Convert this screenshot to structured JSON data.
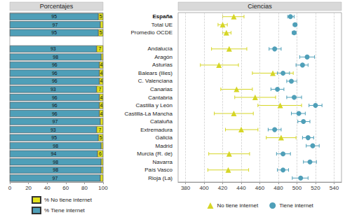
{
  "chart_data": [
    {
      "type": "bar",
      "title": "Porcentajes",
      "orientation": "horizontal",
      "stacked": true,
      "data_labels": true,
      "tick_labels": "x",
      "grid": false,
      "legend": "bottom-left",
      "categories": [
        "España",
        "Total UE",
        "Promedio OCDE",
        null,
        "Andalucía",
        "Aragón",
        "Asturias",
        "Balears (Illes)",
        "C. Valenciana",
        "Canarias",
        "Cantabria",
        "Castilla y León",
        "Castilla-La Mancha",
        "Cataluña",
        "Extremadura",
        "Galicia",
        "Madrid",
        "Murcia (R. de)",
        "Navarra",
        "País Vasco",
        "Rioja (La)"
      ],
      "xlim": [
        0,
        100
      ],
      "xticks": [
        0,
        20,
        40,
        60,
        80,
        100
      ],
      "series": [
        {
          "name": "% No tiene internet",
          "color": "#e3e31e",
          "values": [
            5,
            3,
            5,
            null,
            7,
            2,
            4,
            4,
            4,
            7,
            4,
            4,
            4,
            3,
            7,
            5,
            2,
            6,
            2,
            2,
            3
          ],
          "value_labels": [
            "5",
            null,
            "5",
            null,
            "7",
            null,
            "4",
            "4",
            "4",
            "7",
            "4",
            "4",
            "4",
            null,
            "7",
            "5",
            null,
            "6",
            null,
            null,
            null
          ]
        },
        {
          "name": "% Tiene internet",
          "color": "#4f9fb8",
          "values": [
            95,
            97,
            95,
            null,
            93,
            98,
            96,
            96,
            96,
            93,
            96,
            96,
            96,
            97,
            93,
            95,
            98,
            94,
            98,
            98,
            97
          ]
        }
      ]
    },
    {
      "type": "scatter",
      "title": "Ciencias",
      "grid": true,
      "legend": "bottom",
      "categories": [
        "España",
        "Total UE",
        "Promedio OCDE",
        null,
        "Andalucía",
        "Aragón",
        "Asturias",
        "Balears (Illes)",
        "C. Valenciana",
        "Canarias",
        "Cantabria",
        "Castilla y León",
        "Castilla-La Mancha",
        "Cataluña",
        "Extremadura",
        "Galicia",
        "Madrid",
        "Murcia (R. de)",
        "Navarra",
        "País Vasco",
        "Rioja (La)"
      ],
      "xlim": [
        372,
        548
      ],
      "xticks": [
        380,
        400,
        420,
        440,
        460,
        480,
        500,
        520,
        540
      ],
      "series": [
        {
          "name": "No tiene internet",
          "color": "#d6d626",
          "marker": "triangle",
          "values": [
            432,
            420,
            424,
            null,
            427,
            null,
            416,
            474,
            null,
            435,
            455,
            482,
            432,
            null,
            440,
            483,
            null,
            427,
            null,
            426,
            null
          ],
          "ci": [
            [
              420,
              443
            ],
            [
              415,
              425
            ],
            [
              420,
              429
            ],
            null,
            [
              408,
              446
            ],
            null,
            [
              396,
              437
            ],
            [
              452,
              496
            ],
            null,
            [
              418,
              452
            ],
            [
              433,
              477
            ],
            [
              458,
              505
            ],
            [
              411,
              453
            ],
            null,
            [
              423,
              458
            ],
            [
              467,
              499
            ],
            null,
            [
              405,
              449
            ],
            null,
            [
              404,
              448
            ],
            null
          ]
        },
        {
          "name": "Tiene internet",
          "color": "#4f9fb8",
          "marker": "circle",
          "values": [
            493,
            498,
            497,
            null,
            476,
            511,
            506,
            485,
            494,
            479,
            497,
            520,
            502,
            507,
            476,
            512,
            517,
            485,
            514,
            485,
            504
          ],
          "ci": [
            [
              490,
              497
            ],
            [
              496,
              500
            ],
            [
              495,
              499
            ],
            null,
            [
              470,
              483
            ],
            [
              503,
              519
            ],
            [
              499,
              512
            ],
            [
              479,
              492
            ],
            [
              489,
              500
            ],
            [
              472,
              486
            ],
            [
              489,
              505
            ],
            [
              513,
              527
            ],
            [
              494,
              509
            ],
            [
              501,
              514
            ],
            [
              469,
              483
            ],
            [
              506,
              518
            ],
            [
              510,
              524
            ],
            [
              478,
              493
            ],
            [
              507,
              521
            ],
            [
              479,
              491
            ],
            [
              495,
              512
            ]
          ]
        }
      ]
    }
  ]
}
